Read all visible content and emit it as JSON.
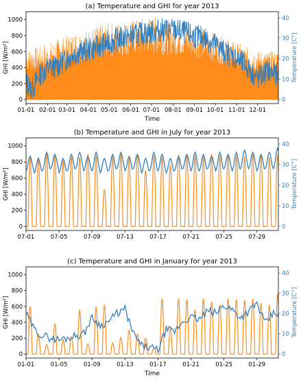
{
  "colors": {
    "ghi": "#ff8c1a",
    "temp": "#2f7fc1",
    "axis": "#000000"
  },
  "chart_data": [
    {
      "type": "line",
      "title": "(a) Temperature and GHI for year 2013",
      "xlabel": "Time",
      "ylabel_left": "GHI [W/m²]",
      "ylabel_right": "Temperature [C°]",
      "ylim_left": [
        -50,
        1100
      ],
      "ylim_right": [
        -2,
        43
      ],
      "yticks_left": [
        "0",
        "200",
        "400",
        "600",
        "800",
        "1000"
      ],
      "yticks_right": [
        "0",
        "10",
        "20",
        "30",
        "40"
      ],
      "xticks": [
        "01-01",
        "02-01",
        "03-01",
        "04-01",
        "05-01",
        "06-01",
        "07-01",
        "08-01",
        "09-01",
        "10-01",
        "11-01",
        "12-01"
      ],
      "grid": false,
      "series": [
        {
          "axis": "left",
          "style": "daily-peaks",
          "x_days": [
            1,
            16,
            32,
            46,
            60,
            74,
            91,
            105,
            121,
            135,
            152,
            166,
            182,
            196,
            213,
            227,
            244,
            258,
            274,
            288,
            305,
            319,
            335,
            349,
            365
          ],
          "peak_envelope_ghi": [
            640,
            660,
            700,
            760,
            800,
            860,
            880,
            930,
            960,
            980,
            1000,
            1020,
            1040,
            1020,
            1000,
            980,
            950,
            900,
            840,
            780,
            720,
            660,
            620,
            600,
            610
          ]
        },
        {
          "axis": "right",
          "style": "smooth",
          "x_days": [
            1,
            10,
            20,
            32,
            45,
            60,
            75,
            91,
            105,
            121,
            135,
            152,
            166,
            182,
            196,
            213,
            227,
            244,
            258,
            274,
            288,
            305,
            319,
            335,
            349,
            365
          ],
          "temperature_c": [
            8,
            5,
            12,
            15,
            16,
            20,
            23,
            24,
            26,
            28,
            30,
            31,
            32,
            33,
            34,
            34,
            33,
            31,
            30,
            27,
            23,
            20,
            16,
            10,
            14,
            12
          ]
        }
      ]
    },
    {
      "type": "line",
      "title": "(b) Temperature and GHI in July for year 2013",
      "xlabel": "",
      "ylabel_left": "GHI [W/m²]",
      "ylabel_right": "Temperature [C°]",
      "ylim_left": [
        -50,
        1100
      ],
      "ylim_right": [
        -2,
        43
      ],
      "yticks_left": [
        "0",
        "200",
        "400",
        "600",
        "800",
        "1000"
      ],
      "yticks_right": [
        "0",
        "10",
        "20",
        "30",
        "40"
      ],
      "xticks": [
        "07-01",
        "07-05",
        "07-09",
        "07-13",
        "07-17",
        "07-21",
        "07-25",
        "07-29"
      ],
      "grid": false,
      "series": [
        {
          "axis": "left",
          "style": "daily-peaks",
          "x_days": [
            1,
            2,
            3,
            4,
            5,
            6,
            7,
            8,
            9,
            10,
            11,
            12,
            13,
            14,
            15,
            16,
            17,
            18,
            19,
            20,
            21,
            22,
            23,
            24,
            25,
            26,
            27,
            28,
            29,
            30,
            31
          ],
          "peak_ghi": [
            880,
            860,
            900,
            890,
            820,
            870,
            860,
            900,
            880,
            460,
            870,
            900,
            850,
            880,
            700,
            880,
            860,
            760,
            890,
            900,
            880,
            870,
            900,
            880,
            890,
            880,
            870,
            900,
            880,
            860,
            890
          ]
        },
        {
          "axis": "right",
          "style": "smooth",
          "x_days": [
            1,
            2,
            3,
            4,
            5,
            6,
            7,
            8,
            9,
            10,
            11,
            12,
            13,
            14,
            15,
            16,
            17,
            18,
            19,
            20,
            21,
            22,
            23,
            24,
            25,
            26,
            27,
            28,
            29,
            30,
            31
          ],
          "temp_max_c": [
            34,
            33,
            36,
            35,
            33,
            35,
            36,
            34,
            36,
            33,
            35,
            36,
            34,
            35,
            33,
            36,
            35,
            33,
            34,
            35,
            36,
            35,
            34,
            36,
            35,
            36,
            37,
            36,
            35,
            36,
            38
          ],
          "temp_min_c": [
            27,
            26,
            27,
            28,
            26,
            27,
            28,
            27,
            27,
            26,
            27,
            28,
            27,
            28,
            26,
            27,
            27,
            26,
            27,
            28,
            27,
            27,
            28,
            27,
            28,
            27,
            28,
            28,
            27,
            28,
            28
          ]
        }
      ]
    },
    {
      "type": "line",
      "title": "(c) Temperature and GHI in January for year 2013",
      "xlabel": "Time",
      "ylabel_left": "GHI [W/m²]",
      "ylabel_right": "Temperature [C°]",
      "ylim_left": [
        -50,
        1100
      ],
      "ylim_right": [
        -2,
        43
      ],
      "yticks_left": [
        "0",
        "200",
        "400",
        "600",
        "800",
        "1000"
      ],
      "yticks_right": [
        "0",
        "10",
        "20",
        "30",
        "40"
      ],
      "xticks": [
        "01-01",
        "01-05",
        "01-09",
        "01-13",
        "01-17",
        "01-21",
        "01-25",
        "01-29"
      ],
      "grid": false,
      "series": [
        {
          "axis": "left",
          "style": "daily-peaks",
          "x_days": [
            1,
            2,
            3,
            4,
            5,
            6,
            7,
            8,
            9,
            10,
            11,
            12,
            13,
            14,
            15,
            16,
            17,
            18,
            19,
            20,
            21,
            22,
            23,
            24,
            25,
            26,
            27,
            28,
            29,
            30,
            31
          ],
          "peak_ghi": [
            600,
            250,
            120,
            380,
            180,
            220,
            560,
            130,
            600,
            620,
            140,
            210,
            300,
            250,
            200,
            80,
            700,
            330,
            700,
            690,
            560,
            700,
            660,
            620,
            700,
            690,
            680,
            700,
            640,
            620,
            760
          ]
        },
        {
          "axis": "right",
          "style": "smooth",
          "x_days": [
            1,
            2,
            3,
            4,
            5,
            6,
            7,
            8,
            9,
            10,
            11,
            12,
            13,
            14,
            15,
            16,
            17,
            18,
            19,
            20,
            21,
            22,
            23,
            24,
            25,
            26,
            27,
            28,
            29,
            30,
            31
          ],
          "temperature_c": [
            20,
            12,
            9,
            8,
            7,
            8,
            9,
            10,
            18,
            14,
            16,
            20,
            22,
            10,
            4,
            3,
            2,
            12,
            11,
            16,
            18,
            17,
            21,
            20,
            24,
            22,
            18,
            21,
            25,
            15,
            20
          ]
        }
      ]
    }
  ]
}
